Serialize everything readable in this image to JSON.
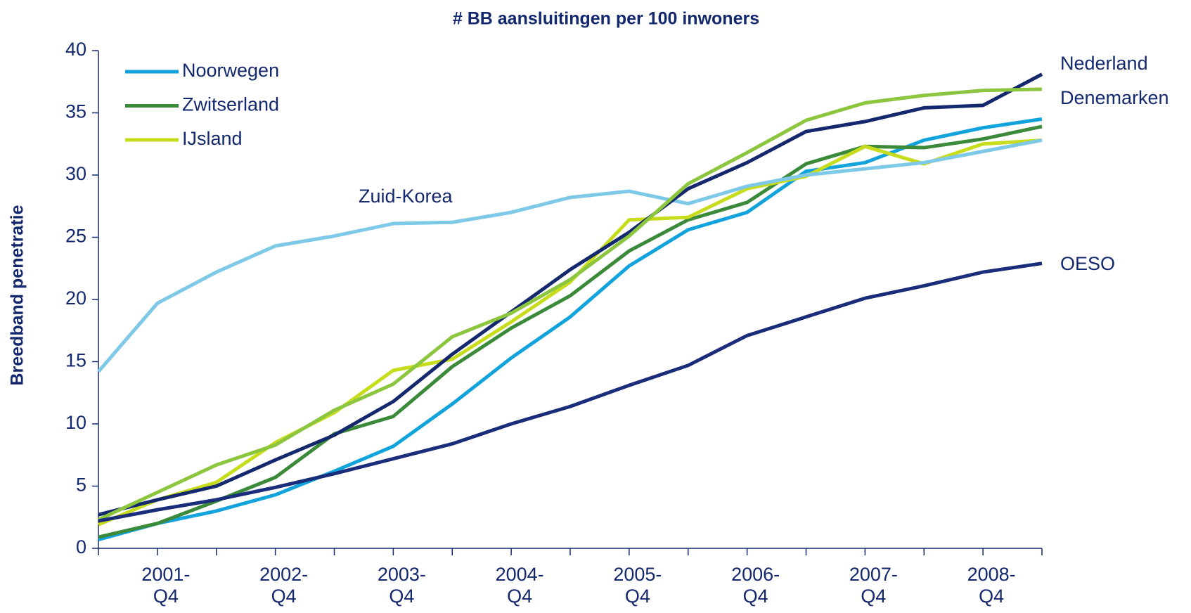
{
  "chart_data": {
    "type": "line",
    "title": "# BB aansluitingen per 100 inwoners",
    "y_label": "Breedband penetratie",
    "categories": [
      null,
      "2001-Q4",
      null,
      "2002-Q4",
      null,
      "2003-Q4",
      null,
      "2004-Q4",
      null,
      "2005-Q4",
      null,
      "2006-Q4",
      null,
      "2007-Q4",
      null,
      "2008-Q4",
      null
    ],
    "series": [
      {
        "name": "Noorwegen",
        "color": "#12a3dc",
        "values": [
          0.7,
          2.0,
          3.0,
          4.3,
          6.2,
          8.2,
          11.6,
          15.3,
          18.6,
          22.7,
          25.6,
          27.0,
          30.3,
          31.0,
          32.8,
          33.8,
          34.5
        ]
      },
      {
        "name": "Zwitserland",
        "color": "#3b8a3a",
        "values": [
          0.9,
          2.0,
          3.8,
          5.7,
          9.2,
          10.6,
          14.6,
          17.7,
          20.3,
          23.9,
          26.4,
          27.8,
          30.9,
          32.3,
          32.2,
          32.9,
          33.9
        ]
      },
      {
        "name": "IJsland",
        "color": "#c8dc1e",
        "values": [
          1.9,
          3.9,
          5.3,
          8.5,
          10.9,
          14.3,
          15.2,
          18.2,
          21.4,
          26.4,
          26.6,
          28.9,
          29.9,
          32.3,
          30.9,
          32.5,
          32.8
        ]
      },
      {
        "name": "Zuid-Korea",
        "color": "#7ec8e8",
        "values": [
          14.2,
          19.7,
          22.2,
          24.3,
          25.1,
          26.1,
          26.2,
          27.0,
          28.2,
          28.7,
          27.7,
          29.1,
          30.0,
          30.5,
          31.0,
          31.9,
          32.8
        ]
      },
      {
        "name": "Nederland",
        "color": "#14286e",
        "values": [
          2.7,
          3.9,
          5.0,
          7.1,
          9.1,
          11.8,
          15.6,
          19.0,
          22.4,
          25.4,
          28.9,
          31.0,
          33.5,
          34.3,
          35.4,
          35.6,
          38.1
        ]
      },
      {
        "name": "Denemarken",
        "color": "#8cc63f",
        "values": [
          2.3,
          4.5,
          6.7,
          8.3,
          11.1,
          13.2,
          17.0,
          18.9,
          21.6,
          25.1,
          29.3,
          31.8,
          34.4,
          35.8,
          36.4,
          36.8,
          36.9
        ]
      },
      {
        "name": "OESO",
        "color": "#1a2d7a",
        "values": [
          2.2,
          3.1,
          3.9,
          4.9,
          6.0,
          7.2,
          8.4,
          10.0,
          11.4,
          13.1,
          14.7,
          17.1,
          18.6,
          20.1,
          21.1,
          22.2,
          22.9
        ]
      }
    ],
    "ylim": [
      0,
      40
    ],
    "yticks": [
      0,
      5,
      10,
      15,
      20,
      25,
      30,
      35,
      40
    ]
  }
}
